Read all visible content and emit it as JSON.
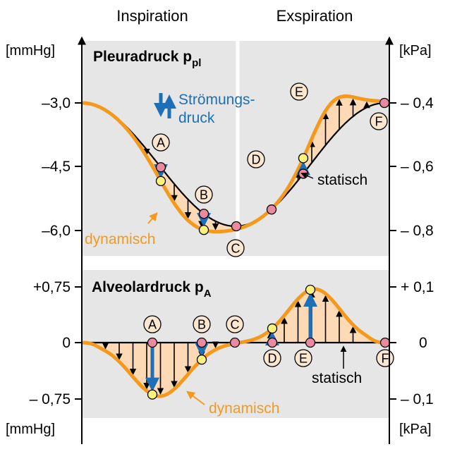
{
  "header": {
    "left": "Inspiration",
    "right": "Exspiration"
  },
  "colors": {
    "panel": "#e6e6e6",
    "curve": "#f39a1e",
    "fill": "#fdd9b5",
    "arrow_blue": "#1d6fb8",
    "point_red": "#e98aa0",
    "point_yellow": "#fff27a",
    "label_circle": "#fbe6cf"
  },
  "top_panel": {
    "title": "Pleuradruck p",
    "title_sub": "pl",
    "left_unit": "[mmHg]",
    "right_unit": "[kPa]",
    "left_ticks": [
      "–3,0",
      "–4,5",
      "–6,0"
    ],
    "right_ticks": [
      "– 0,4",
      "– 0,6",
      "– 0,8"
    ],
    "legend_line1": "Strömungs-",
    "legend_line2": "druck",
    "label_dynamic": "dynamisch",
    "label_static": "statisch",
    "points": [
      "A",
      "B",
      "C",
      "D",
      "E",
      "F"
    ]
  },
  "bottom_panel": {
    "title": "Alveolardruck p",
    "title_sub": "A",
    "left_unit": "[mmHg]",
    "right_unit": "[kPa]",
    "left_ticks": [
      "+0,75",
      "0",
      "– 0,75"
    ],
    "right_ticks": [
      "+ 0,1",
      "0",
      "– 0,1"
    ],
    "label_dynamic": "dynamisch",
    "label_static": "statisch",
    "points": [
      "A",
      "B",
      "C",
      "D",
      "E",
      "F"
    ]
  }
}
